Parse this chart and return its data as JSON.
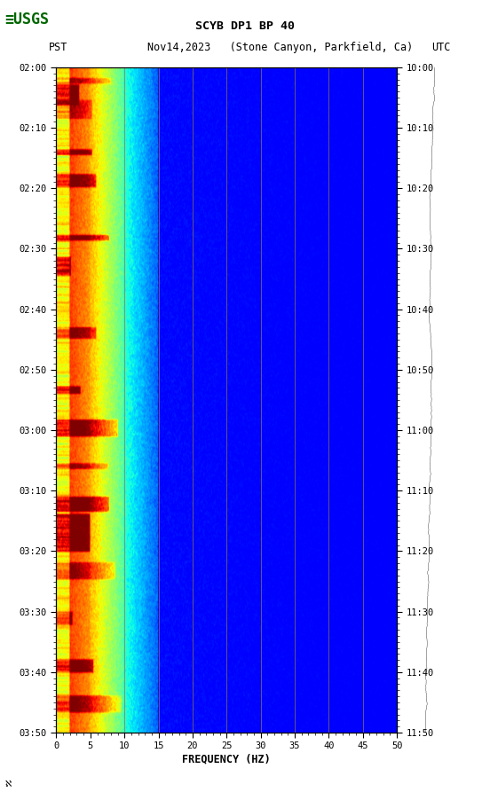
{
  "title_line1": "SCYB DP1 BP 40",
  "title_line2_left": "PST",
  "title_line2_mid": "Nov14,2023   (Stone Canyon, Parkfield, Ca)",
  "title_line2_right": "UTC",
  "xlabel": "FREQUENCY (HZ)",
  "freq_min": 0,
  "freq_max": 50,
  "pst_ticks": [
    "02:00",
    "02:10",
    "02:20",
    "02:30",
    "02:40",
    "02:50",
    "03:00",
    "03:10",
    "03:20",
    "03:30",
    "03:40",
    "03:50"
  ],
  "utc_ticks": [
    "10:00",
    "10:10",
    "10:20",
    "10:30",
    "10:40",
    "10:50",
    "11:00",
    "11:10",
    "11:20",
    "11:30",
    "11:40",
    "11:50"
  ],
  "freq_ticks": [
    0,
    5,
    10,
    15,
    20,
    25,
    30,
    35,
    40,
    45,
    50
  ],
  "vertical_lines_freq": [
    10,
    15,
    20,
    25,
    30,
    35,
    40,
    45
  ],
  "vline_color": "#8B7355",
  "colormap": "jet",
  "fig_width": 5.52,
  "fig_height": 8.93,
  "usgs_color": "#006600",
  "text_color": "#000000",
  "low_freq_cutoff": 10,
  "mid_freq_cutoff": 20
}
